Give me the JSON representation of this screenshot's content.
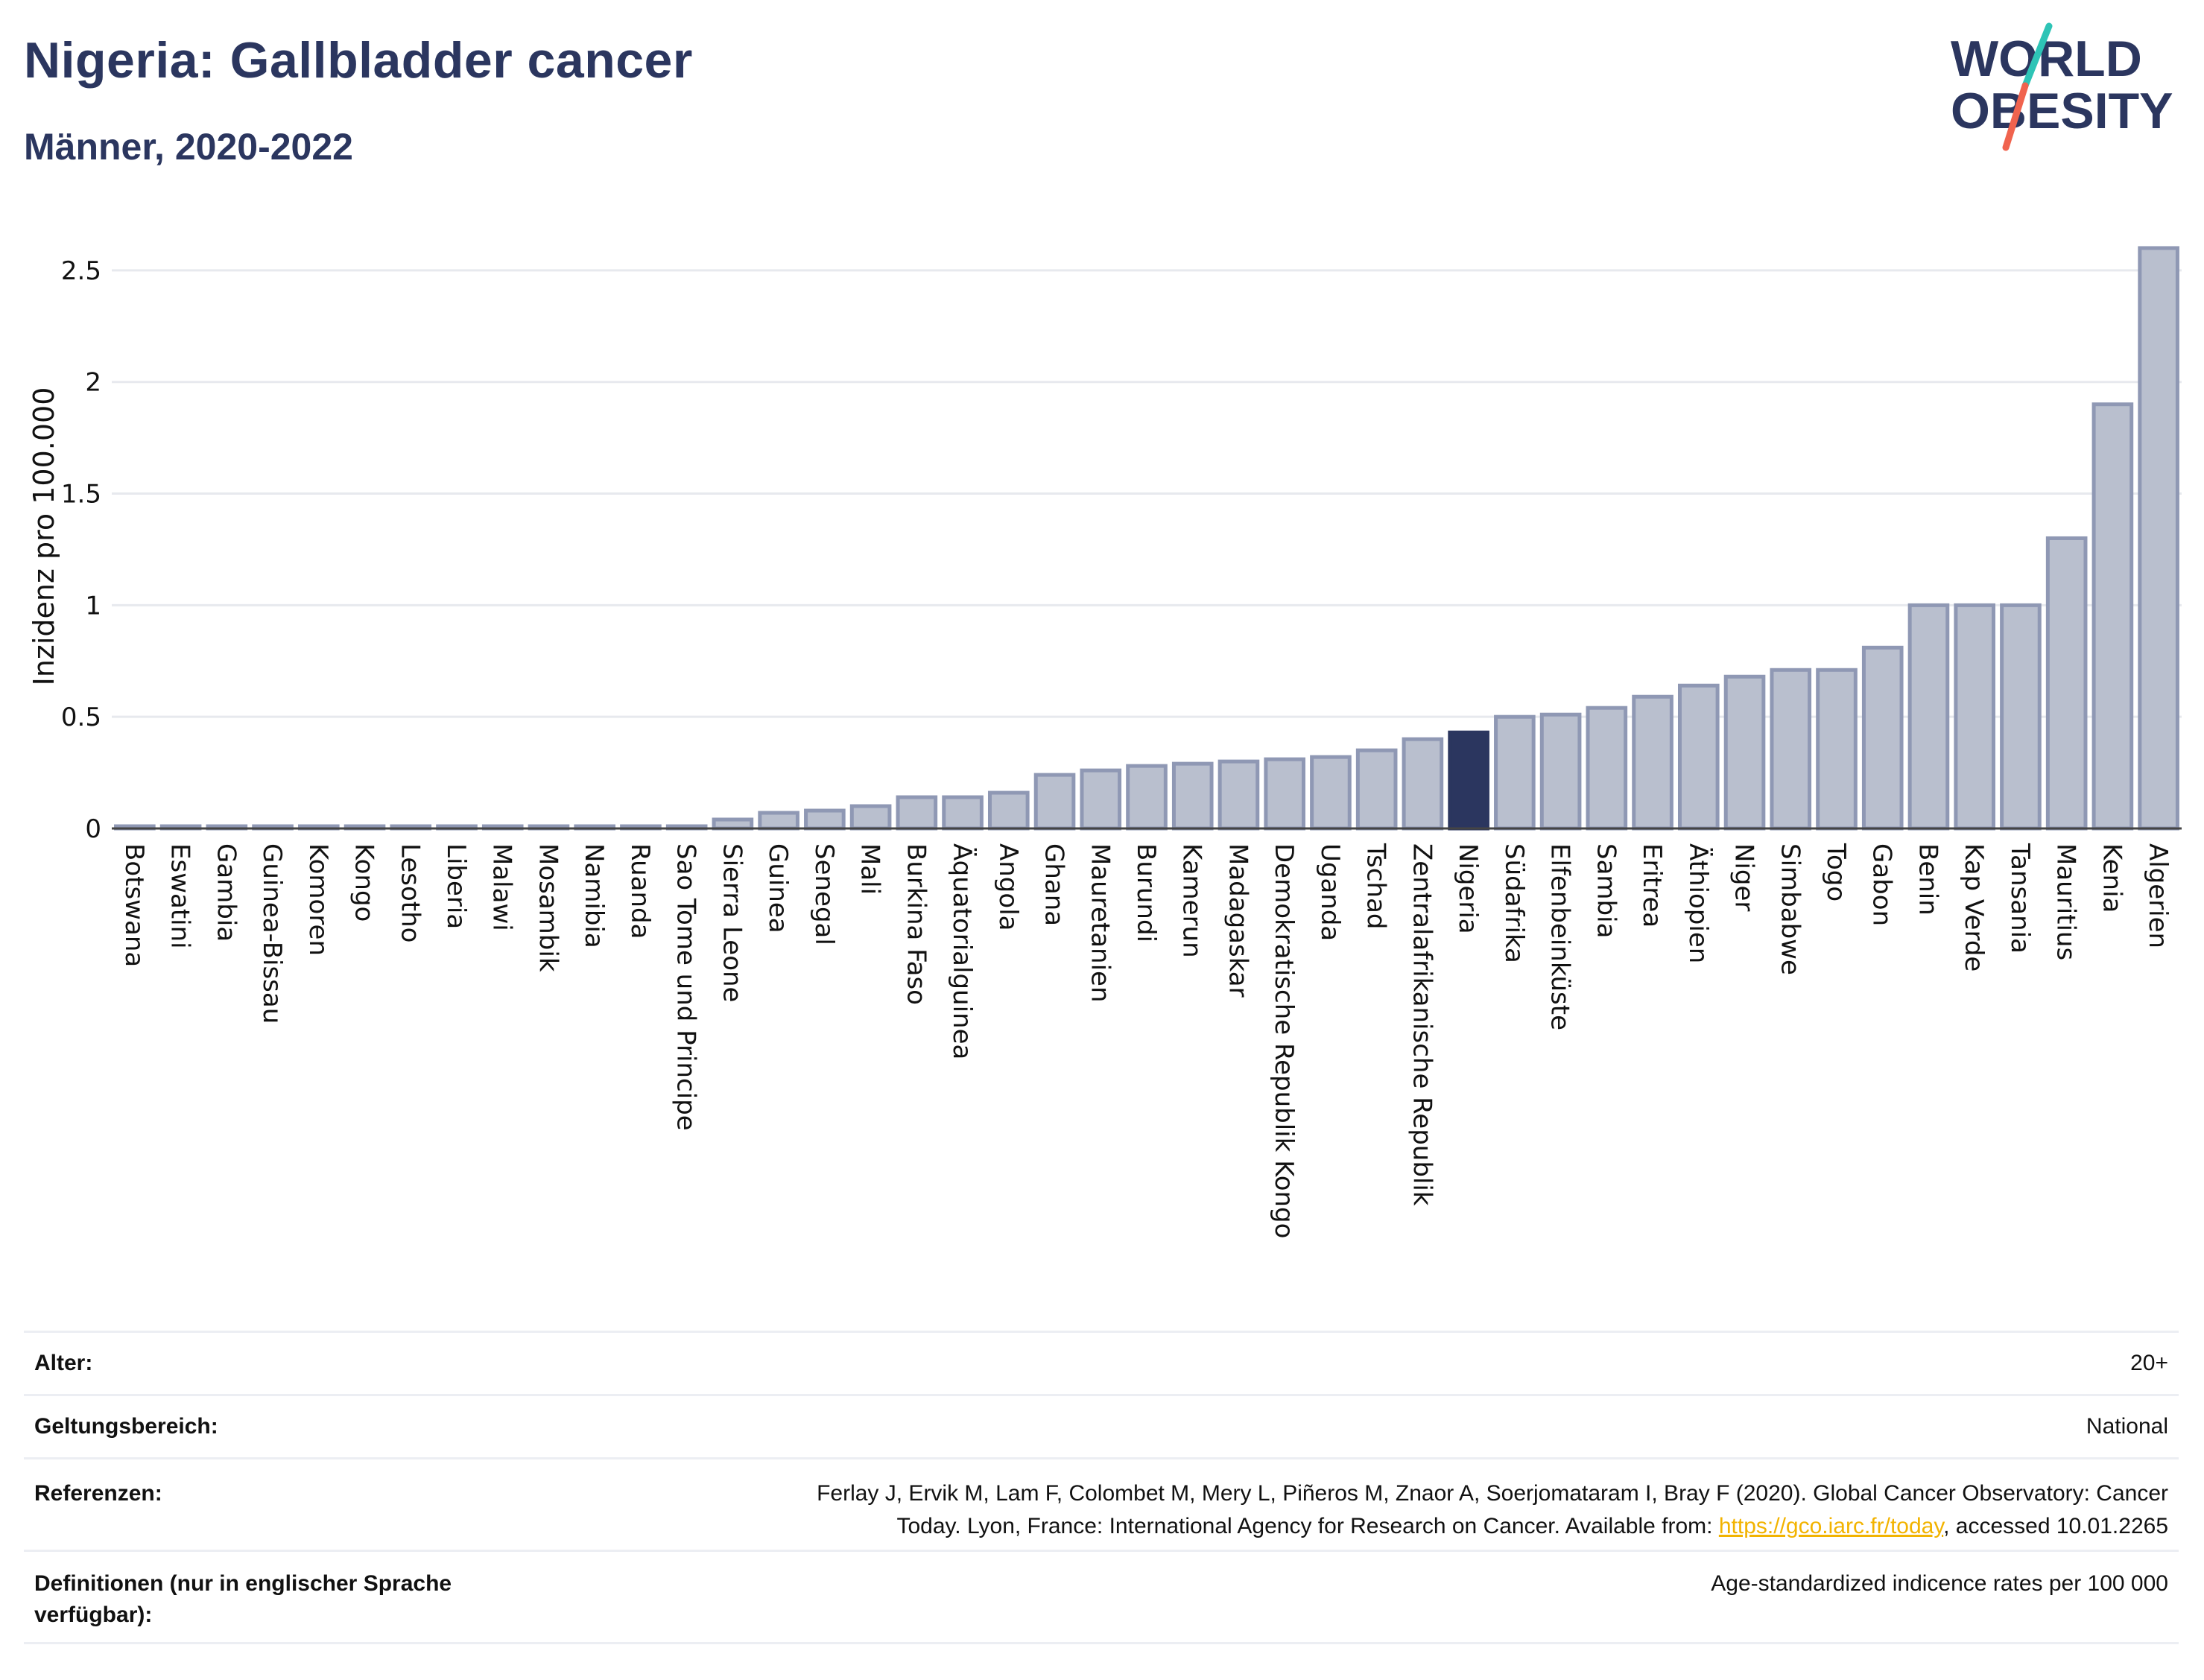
{
  "header": {
    "title": "Nigeria: Gallbladder cancer",
    "subtitle": "Männer, 2020-2022"
  },
  "logo": {
    "line1": "WORLD",
    "line2": "OBESITY",
    "colors": {
      "text": "#2b365f",
      "teal": "#2ec4b6",
      "coral": "#f0634e"
    }
  },
  "colors": {
    "bar": "#b9bfce",
    "bar_border": "#8f98b4",
    "highlight": "#2b365f",
    "grid": "#e7e9ee"
  },
  "chart_data": {
    "type": "bar",
    "title": "",
    "xlabel": "",
    "ylabel": "Inzidenz pro 100.000",
    "ylim": [
      0,
      2.75
    ],
    "yticks": [
      0,
      0.5,
      1,
      1.5,
      2,
      2.5
    ],
    "ytick_labels": [
      "0",
      "0.5",
      "1",
      "1.5",
      "2",
      "2.5"
    ],
    "grid": true,
    "highlight_category": "Nigeria",
    "categories": [
      "Botswana",
      "Eswatini",
      "Gambia",
      "Guinea-Bissau",
      "Komoren",
      "Kongo",
      "Lesotho",
      "Liberia",
      "Malawi",
      "Mosambik",
      "Namibia",
      "Ruanda",
      "Sao Tome und Principe",
      "Sierra Leone",
      "Guinea",
      "Senegal",
      "Mali",
      "Burkina Faso",
      "Äquatorialguinea",
      "Angola",
      "Ghana",
      "Mauretanien",
      "Burundi",
      "Kamerun",
      "Madagaskar",
      "Demokratische Republik Kongo",
      "Uganda",
      "Tschad",
      "Zentralafrikanische Republik",
      "Nigeria",
      "Südafrika",
      "Elfenbeinküste",
      "Sambia",
      "Eritrea",
      "Äthiopien",
      "Niger",
      "Simbabwe",
      "Togo",
      "Gabon",
      "Benin",
      "Kap Verde",
      "Tansania",
      "Mauritius",
      "Kenia",
      "Algerien"
    ],
    "values": [
      0.01,
      0.01,
      0.01,
      0.01,
      0.01,
      0.01,
      0.01,
      0.01,
      0.01,
      0.01,
      0.01,
      0.01,
      0.01,
      0.04,
      0.07,
      0.08,
      0.1,
      0.14,
      0.14,
      0.16,
      0.24,
      0.26,
      0.28,
      0.29,
      0.3,
      0.31,
      0.32,
      0.35,
      0.4,
      0.43,
      0.5,
      0.51,
      0.54,
      0.59,
      0.64,
      0.68,
      0.71,
      0.71,
      0.81,
      1.0,
      1.0,
      1.0,
      1.3,
      1.9,
      2.6
    ]
  },
  "info": {
    "age_label": "Alter:",
    "age_value": "20+",
    "scope_label": "Geltungsbereich:",
    "scope_value": "National",
    "refs_label": "Referenzen:",
    "refs_line1": "Ferlay J, Ervik M, Lam F, Colombet M, Mery L, Piñeros M, Znaor A, Soerjomataram I, Bray F (2020). Global Cancer Observatory: Cancer",
    "refs_line2_pre": "Today. Lyon, France: International Agency for Research on Cancer. Available from: ",
    "refs_link": "https://gco.iarc.fr/today",
    "refs_line2_post": ", accessed 10.01.2265",
    "defs_label": "Definitionen (nur in englischer Sprache verfügbar):",
    "defs_value": "Age-standardized indicence rates per 100 000"
  }
}
